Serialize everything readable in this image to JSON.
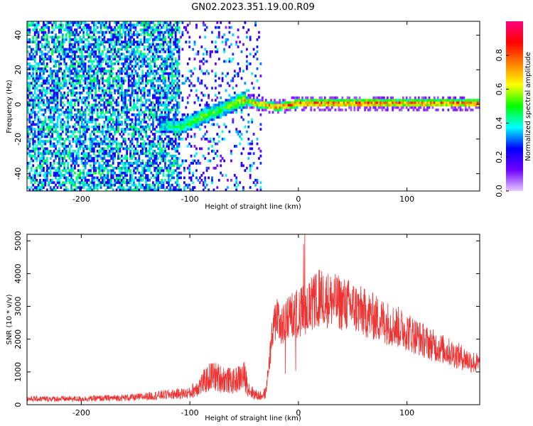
{
  "chart_data": [
    {
      "type": "heatmap",
      "title": "GN02.2023.351.19.00.R09",
      "xlabel": "Height of straight line (km)",
      "ylabel": "Frequency (Hz)",
      "xlim": [
        -250,
        167
      ],
      "ylim": [
        -50,
        48
      ],
      "xticks": [
        -200,
        -100,
        0,
        100
      ],
      "yticks": [
        -40,
        -20,
        0,
        20,
        40
      ],
      "grid": false,
      "colorbar": {
        "label": "Normalized spectral amplitude",
        "range": [
          0.0,
          1.0
        ],
        "ticks": [
          "0.0",
          "0.2",
          "0.4",
          "0.6",
          "0.8"
        ],
        "colormap": "rainbow-reversed",
        "stops": [
          "#e6c8ff",
          "#7000ff",
          "#0000ff",
          "#00ffff",
          "#00ff00",
          "#ffff00",
          "#ff8000",
          "#ff0000",
          "#ff0080"
        ]
      },
      "features": {
        "noise_region_x": [
          -250,
          -35
        ],
        "noise_level": 0.3,
        "signal_band": [
          {
            "x": -130,
            "f": -12,
            "amp": 0.35
          },
          {
            "x": -110,
            "f": -14,
            "amp": 0.55
          },
          {
            "x": -90,
            "f": -8,
            "amp": 0.6
          },
          {
            "x": -70,
            "f": -3,
            "amp": 0.55
          },
          {
            "x": -52,
            "f": 2,
            "amp": 0.7
          },
          {
            "x": -40,
            "f": 0,
            "amp": 0.8
          },
          {
            "x": -20,
            "f": -2,
            "amp": 0.85
          },
          {
            "x": 0,
            "f": 0,
            "amp": 0.9
          },
          {
            "x": 60,
            "f": 0,
            "amp": 0.9
          },
          {
            "x": 120,
            "f": 0,
            "amp": 0.85
          },
          {
            "x": 167,
            "f": 0,
            "amp": 0.9
          }
        ]
      }
    },
    {
      "type": "line",
      "xlabel": "Height of straight line (km)",
      "ylabel": "SNR (10 * v/v)",
      "xlim": [
        -250,
        167
      ],
      "ylim": [
        0,
        5200
      ],
      "xticks": [
        -200,
        -100,
        0,
        100
      ],
      "yticks": [
        0,
        1000,
        2000,
        3000,
        4000,
        5000
      ],
      "grid": false,
      "line_color": "#ee3333",
      "series": [
        {
          "x": [
            -250,
            -200,
            -150,
            -120,
            -100,
            -90,
            -80,
            -70,
            -60,
            -50,
            -45,
            -40,
            -35,
            -30,
            -25,
            -20,
            -15,
            -10,
            0,
            10,
            20,
            30,
            40,
            50,
            60,
            80,
            100,
            120,
            140,
            167
          ],
          "values": [
            200,
            200,
            250,
            350,
            400,
            700,
            1000,
            900,
            800,
            1000,
            500,
            350,
            300,
            400,
            2000,
            3000,
            2500,
            2800,
            3000,
            3200,
            3500,
            3400,
            3300,
            3200,
            3000,
            2700,
            2400,
            2000,
            1700,
            1300
          ]
        }
      ]
    }
  ]
}
